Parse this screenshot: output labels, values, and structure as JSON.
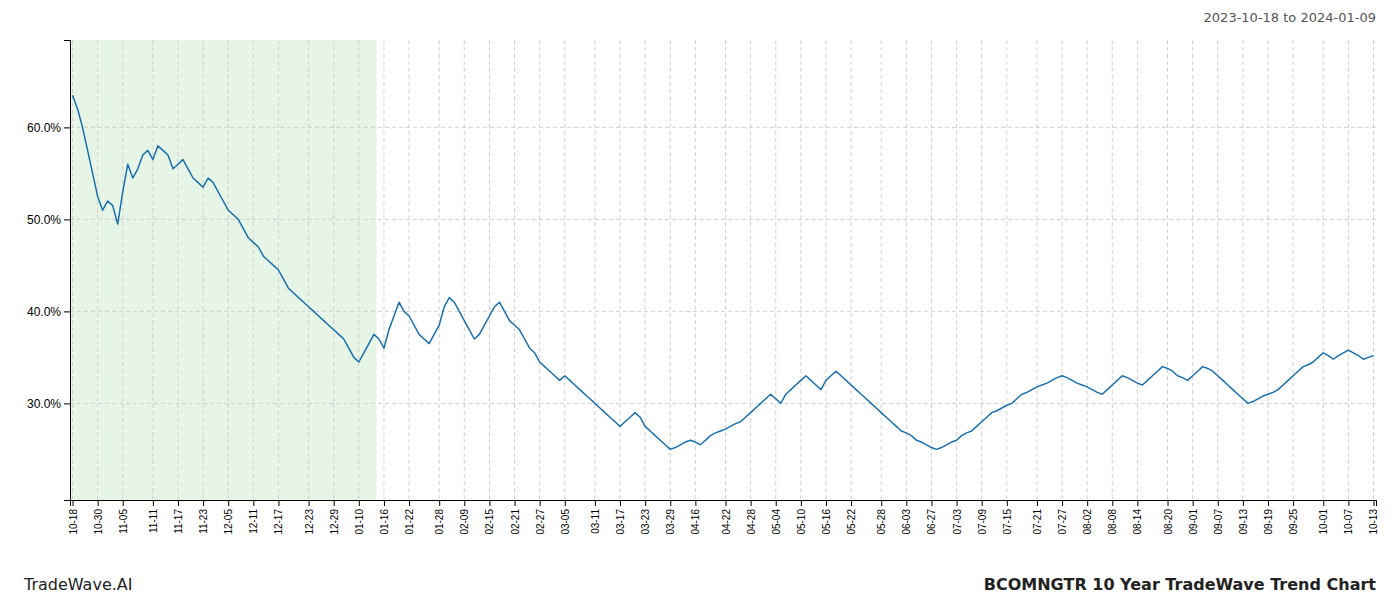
{
  "chart_data": {
    "type": "line",
    "title": "BCOMNGTR 10 Year TradeWave Trend Chart",
    "subtitle": "2023-10-18 to 2024-01-09",
    "annotations": [
      "TradeWave.AI"
    ],
    "color": "#1a6faf",
    "grid": true,
    "shade": {
      "from": 0,
      "to": 60,
      "color": "#c8e8c8"
    },
    "ylim": [
      0.195,
      0.695
    ],
    "yticks": [
      {
        "value": 0.3,
        "label": "30.0%"
      },
      {
        "value": 0.4,
        "label": "40.0%"
      },
      {
        "value": 0.5,
        "label": "50.0%"
      },
      {
        "value": 0.6,
        "label": "60.0%"
      }
    ],
    "categories": [
      "10-18",
      null,
      null,
      null,
      null,
      "10-30",
      null,
      null,
      null,
      null,
      "11-05",
      null,
      null,
      null,
      null,
      null,
      "11-11",
      null,
      null,
      null,
      null,
      "11-17",
      null,
      null,
      null,
      null,
      "11-23",
      null,
      null,
      null,
      null,
      "12-05",
      null,
      null,
      null,
      null,
      "12-11",
      null,
      null,
      null,
      null,
      "12-17",
      null,
      null,
      null,
      null,
      null,
      "12-23",
      null,
      null,
      null,
      null,
      "12-29",
      null,
      null,
      null,
      null,
      "01-10",
      null,
      null,
      null,
      null,
      "01-16",
      null,
      null,
      null,
      null,
      "01-22",
      null,
      null,
      null,
      null,
      null,
      "01-28",
      null,
      null,
      null,
      null,
      "02-09",
      null,
      null,
      null,
      null,
      "02-15",
      null,
      null,
      null,
      null,
      "02-21",
      null,
      null,
      null,
      null,
      "02-27",
      null,
      null,
      null,
      null,
      "03-05",
      null,
      null,
      null,
      null,
      null,
      "03-11",
      null,
      null,
      null,
      null,
      "03-17",
      null,
      null,
      null,
      null,
      "03-23",
      null,
      null,
      null,
      null,
      "03-29",
      null,
      null,
      null,
      null,
      "04-16",
      null,
      null,
      null,
      null,
      null,
      "04-22",
      null,
      null,
      null,
      null,
      "04-28",
      null,
      null,
      null,
      null,
      "05-04",
      null,
      null,
      null,
      null,
      "05-10",
      null,
      null,
      null,
      null,
      "05-16",
      null,
      null,
      null,
      null,
      "05-22",
      null,
      null,
      null,
      null,
      null,
      "05-28",
      null,
      null,
      null,
      null,
      "06-03",
      null,
      null,
      null,
      null,
      "06-27",
      null,
      null,
      null,
      null,
      "07-03",
      null,
      null,
      null,
      null,
      "07-09",
      null,
      null,
      null,
      null,
      "07-15",
      null,
      null,
      null,
      null,
      null,
      "07-21",
      null,
      null,
      null,
      null,
      "07-27",
      null,
      null,
      null,
      null,
      "08-02",
      null,
      null,
      null,
      null,
      "08-08",
      null,
      null,
      null,
      null,
      "08-14",
      null,
      null,
      null,
      null,
      null,
      "08-20",
      null,
      null,
      null,
      null,
      "09-01",
      null,
      null,
      null,
      null,
      "09-07",
      null,
      null,
      null,
      null,
      "09-13",
      null,
      null,
      null,
      null,
      "09-19",
      null,
      null,
      null,
      null,
      "09-25",
      null,
      null,
      null,
      null,
      null,
      "10-01",
      null,
      null,
      null,
      null,
      "10-07",
      null,
      null,
      null,
      null,
      "10-13"
    ],
    "values": [
      0.635,
      0.62,
      0.6,
      0.575,
      0.55,
      0.525,
      0.51,
      0.52,
      0.515,
      0.495,
      0.53,
      0.56,
      0.545,
      0.555,
      0.57,
      0.575,
      0.565,
      0.58,
      0.575,
      0.57,
      0.555,
      0.56,
      0.565,
      0.555,
      0.545,
      0.54,
      0.535,
      0.545,
      0.54,
      0.53,
      0.52,
      0.51,
      0.505,
      0.5,
      0.49,
      0.48,
      0.475,
      0.47,
      0.46,
      0.455,
      0.45,
      0.445,
      0.435,
      0.425,
      0.42,
      0.415,
      0.41,
      0.405,
      0.4,
      0.395,
      0.39,
      0.385,
      0.38,
      0.375,
      0.37,
      0.36,
      0.35,
      0.345,
      0.355,
      0.365,
      0.375,
      0.37,
      0.36,
      0.38,
      0.395,
      0.41,
      0.4,
      0.395,
      0.385,
      0.375,
      0.37,
      0.365,
      0.375,
      0.385,
      0.405,
      0.415,
      0.41,
      0.4,
      0.39,
      0.38,
      0.37,
      0.375,
      0.385,
      0.395,
      0.405,
      0.41,
      0.4,
      0.39,
      0.385,
      0.38,
      0.37,
      0.36,
      0.355,
      0.345,
      0.34,
      0.335,
      0.33,
      0.325,
      0.33,
      0.325,
      0.32,
      0.315,
      0.31,
      0.305,
      0.3,
      0.295,
      0.29,
      0.285,
      0.28,
      0.275,
      0.28,
      0.285,
      0.29,
      0.285,
      0.275,
      0.27,
      0.265,
      0.26,
      0.255,
      0.25,
      0.252,
      0.255,
      0.258,
      0.26,
      0.258,
      0.255,
      0.26,
      0.265,
      0.268,
      0.27,
      0.272,
      0.275,
      0.278,
      0.28,
      0.285,
      0.29,
      0.295,
      0.3,
      0.305,
      0.31,
      0.305,
      0.3,
      0.31,
      0.315,
      0.32,
      0.325,
      0.33,
      0.325,
      0.32,
      0.315,
      0.325,
      0.33,
      0.335,
      0.33,
      0.325,
      0.32,
      0.315,
      0.31,
      0.305,
      0.3,
      0.295,
      0.29,
      0.285,
      0.28,
      0.275,
      0.27,
      0.268,
      0.265,
      0.26,
      0.258,
      0.255,
      0.252,
      0.25,
      0.252,
      0.255,
      0.258,
      0.26,
      0.265,
      0.268,
      0.27,
      0.275,
      0.28,
      0.285,
      0.29,
      0.292,
      0.295,
      0.298,
      0.3,
      0.305,
      0.31,
      0.312,
      0.315,
      0.318,
      0.32,
      0.322,
      0.325,
      0.328,
      0.33,
      0.328,
      0.325,
      0.322,
      0.32,
      0.318,
      0.315,
      0.312,
      0.31,
      0.315,
      0.32,
      0.325,
      0.33,
      0.328,
      0.325,
      0.322,
      0.32,
      0.325,
      0.33,
      0.335,
      0.34,
      0.338,
      0.335,
      0.33,
      0.328,
      0.325,
      0.33,
      0.335,
      0.34,
      0.338,
      0.335,
      0.33,
      0.325,
      0.32,
      0.315,
      0.31,
      0.305,
      0.3,
      0.302,
      0.305,
      0.308,
      0.31,
      0.312,
      0.315,
      0.32,
      0.325,
      0.33,
      0.335,
      0.34,
      0.342,
      0.345,
      0.35,
      0.355,
      0.352,
      0.348,
      0.352,
      0.355,
      0.358,
      0.355,
      0.352,
      0.348,
      0.35,
      0.352
    ]
  }
}
